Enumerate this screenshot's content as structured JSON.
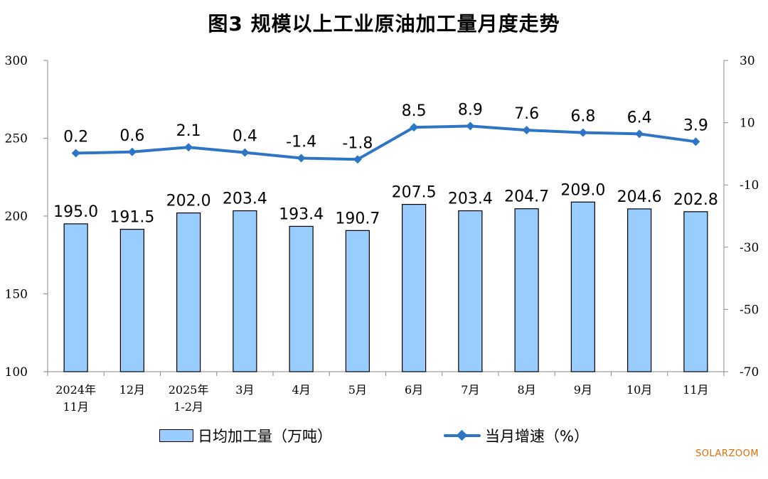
{
  "title": "图3  规模以上工业原油加工量月度走势",
  "watermark": "SOLARZOOM",
  "legend": {
    "bar_label": "日均加工量（万吨）",
    "line_label": "当月增速（%）"
  },
  "colors": {
    "bar_fill": "#99ccff",
    "bar_stroke": "#000000",
    "line": "#2e75c6",
    "watermark": "#e36c09"
  },
  "chart_data": {
    "type": "bar",
    "categories": [
      [
        "2024年",
        "11月"
      ],
      [
        "12月"
      ],
      [
        "2025年",
        "1-2月"
      ],
      [
        "3月"
      ],
      [
        "4月"
      ],
      [
        "5月"
      ],
      [
        "6月"
      ],
      [
        "7月"
      ],
      [
        "8月"
      ],
      [
        "9月"
      ],
      [
        "10月"
      ],
      [
        "11月"
      ]
    ],
    "series": [
      {
        "name": "日均加工量（万吨）",
        "type": "bar",
        "axis": "left",
        "values": [
          195.0,
          191.5,
          202.0,
          203.4,
          193.4,
          190.7,
          207.5,
          203.4,
          204.7,
          209.0,
          204.6,
          202.8
        ],
        "labels": [
          "195.0",
          "191.5",
          "202.0",
          "203.4",
          "193.4",
          "190.7",
          "207.5",
          "203.4",
          "204.7",
          "209.0",
          "204.6",
          "202.8"
        ]
      },
      {
        "name": "当月增速（%）",
        "type": "line",
        "axis": "right",
        "values": [
          0.2,
          0.6,
          2.1,
          0.4,
          -1.4,
          -1.8,
          8.5,
          8.9,
          7.6,
          6.8,
          6.4,
          3.9
        ],
        "labels": [
          "0.2",
          "0.6",
          "2.1",
          "0.4",
          "-1.4",
          "-1.8",
          "8.5",
          "8.9",
          "7.6",
          "6.8",
          "6.4",
          "3.9"
        ]
      }
    ],
    "y_left": {
      "min": 100,
      "max": 300,
      "ticks": [
        "100",
        "150",
        "200",
        "250",
        "300"
      ]
    },
    "y_right": {
      "min": -70,
      "max": 30,
      "ticks": [
        "-70",
        "-50",
        "-30",
        "-10",
        "10",
        "30"
      ]
    },
    "grid": false,
    "legend_position": "bottom"
  }
}
